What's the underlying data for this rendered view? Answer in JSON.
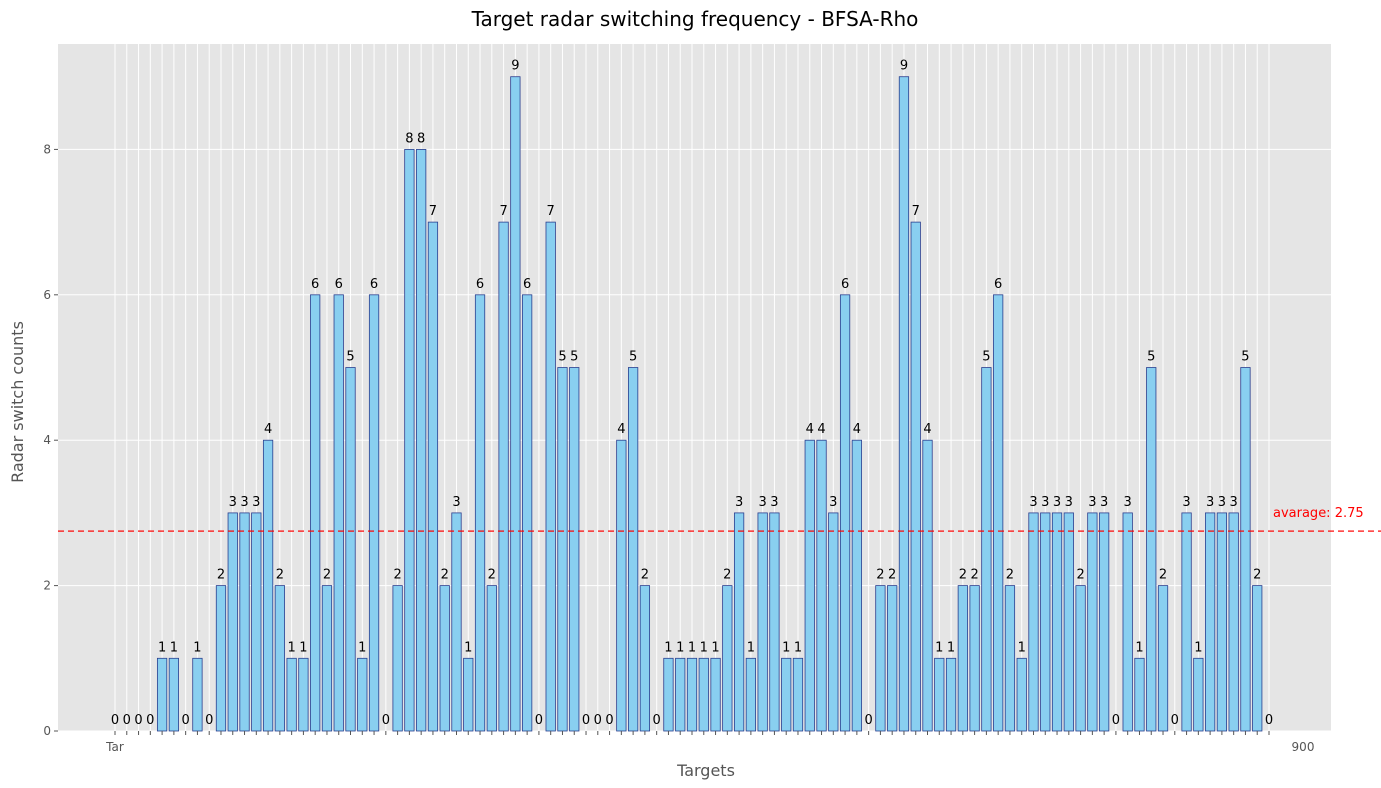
{
  "chart_data": {
    "type": "bar",
    "title": "Target radar switching frequency - BFSA-Rho",
    "xlabel": "Targets",
    "ylabel": "Radar switch counts",
    "ylim": [
      0,
      9.45
    ],
    "yticks": [
      0,
      2,
      4,
      6,
      8
    ],
    "grid": true,
    "values": [
      0,
      0,
      0,
      0,
      1,
      1,
      0,
      1,
      0,
      2,
      3,
      3,
      3,
      4,
      2,
      1,
      1,
      6,
      2,
      6,
      5,
      1,
      6,
      0,
      2,
      8,
      8,
      7,
      2,
      3,
      1,
      6,
      2,
      7,
      9,
      6,
      0,
      7,
      5,
      5,
      0,
      0,
      0,
      4,
      5,
      2,
      0,
      1,
      1,
      1,
      1,
      1,
      2,
      3,
      1,
      3,
      3,
      1,
      1,
      4,
      4,
      3,
      6,
      4,
      0,
      2,
      2,
      9,
      7,
      4,
      1,
      1,
      2,
      2,
      5,
      6,
      2,
      1,
      3,
      3,
      3,
      3,
      2,
      3,
      3,
      0,
      3,
      1,
      5,
      2,
      0,
      3,
      1,
      3,
      3,
      3,
      5,
      2,
      0
    ],
    "first_tick_prefix": "Tar",
    "last_tick_suffix": "900",
    "bar_color": "#89cff0",
    "bar_edge_color": "#2a3f8f",
    "average": {
      "value": 2.75,
      "label": "avarage: 2.75",
      "color": "#ff0000"
    }
  },
  "colors": {
    "plot_background": "#e5e5e5",
    "grid": "#ffffff"
  }
}
